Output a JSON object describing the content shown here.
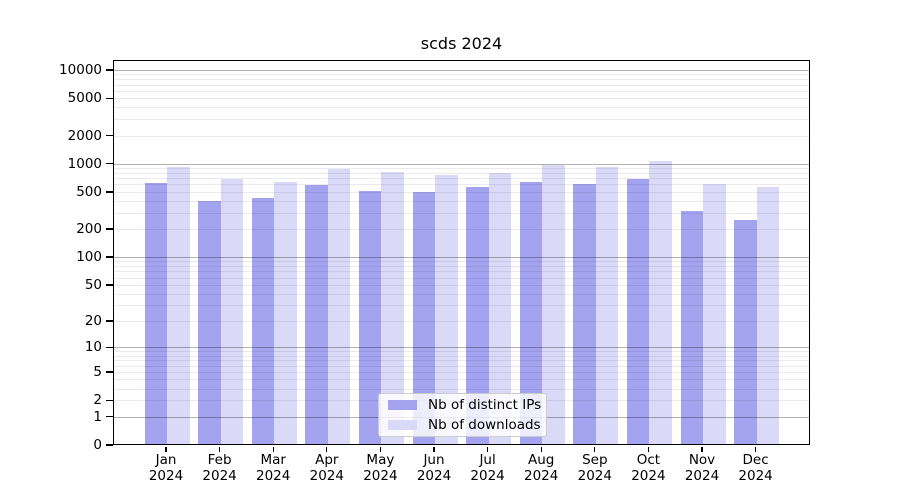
{
  "chart_data": {
    "type": "bar",
    "title": "scds 2024",
    "categories": [
      "Jan 2024",
      "Feb 2024",
      "Mar 2024",
      "Apr 2024",
      "May 2024",
      "Jun 2024",
      "Jul 2024",
      "Aug 2024",
      "Sep 2024",
      "Oct 2024",
      "Nov 2024",
      "Dec 2024"
    ],
    "series": [
      {
        "name": "Nb of distinct IPs",
        "color": "#a3a3f0",
        "values": [
          620,
          400,
          430,
          590,
          510,
          500,
          565,
          640,
          610,
          690,
          310,
          250
        ]
      },
      {
        "name": "Nb of downloads",
        "color": "#dadaf8",
        "values": [
          920,
          690,
          640,
          880,
          820,
          760,
          800,
          970,
          920,
          1070,
          610,
          570
        ]
      }
    ],
    "xlabel": "",
    "ylabel": "",
    "yscale": "log1p",
    "ylim": [
      0,
      12800
    ],
    "yticks": [
      0,
      1,
      2,
      5,
      10,
      20,
      50,
      100,
      200,
      500,
      1000,
      2000,
      5000,
      10000
    ],
    "grid": {
      "major_at": "powers_of_10",
      "minor_at": "2_to_9_per_decade",
      "drawn_on_top_of_bars": true
    },
    "legend": {
      "position": "lower center"
    },
    "style": {
      "axis_color": "#000000",
      "text_color": "#000000",
      "background": "#ffffff",
      "grid_major_color": "rgba(0,0,0,0.30)",
      "grid_minor_color": "rgba(0,0,0,0.08)",
      "legend_bg": "rgba(255,255,255,0.8)",
      "legend_border": "#cccccc"
    }
  }
}
